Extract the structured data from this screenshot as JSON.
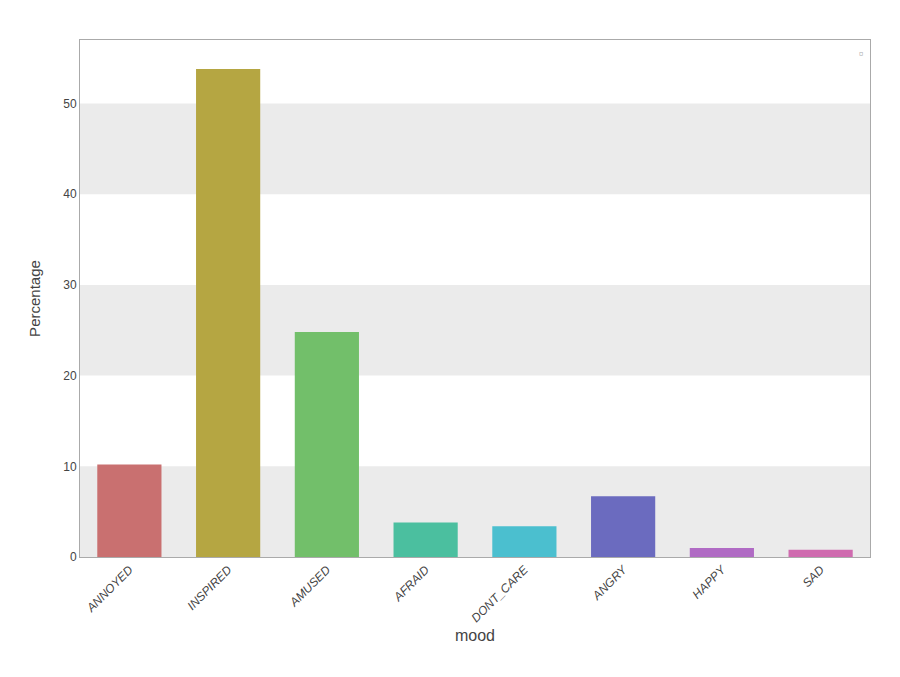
{
  "chart_data": {
    "type": "bar",
    "xlabel": "mood",
    "ylabel": "Percentage",
    "categories": [
      "ANNOYED",
      "INSPIRED",
      "AMUSED",
      "AFRAID",
      "DONT_CARE",
      "ANGRY",
      "HAPPY",
      "SAD"
    ],
    "values": [
      10.2,
      53.8,
      24.8,
      3.8,
      3.4,
      6.7,
      1.0,
      0.8
    ],
    "colors": [
      "#c97070",
      "#b5a642",
      "#72bf6a",
      "#4bbf9f",
      "#4bbfcf",
      "#6b6bbf",
      "#b06bc4",
      "#cf6baf"
    ],
    "ylim": [
      0,
      57
    ],
    "yticks": [
      0,
      10,
      20,
      30,
      40,
      50
    ],
    "grid": false,
    "annotations": [
      "▫"
    ]
  }
}
